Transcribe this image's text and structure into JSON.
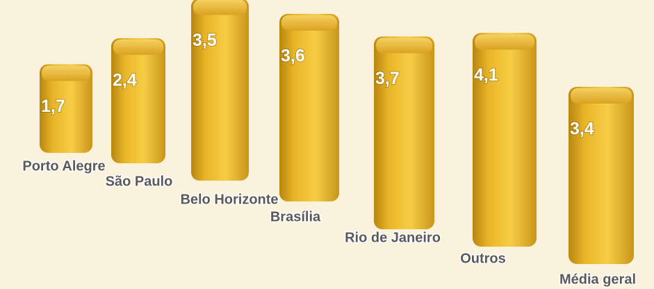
{
  "chart_data": {
    "type": "bar",
    "categories": [
      "Porto Alegre",
      "São Paulo",
      "Belo Horizonte",
      "Brasília",
      "Rio de Janeiro",
      "Outros",
      "Média geral"
    ],
    "values": [
      1.7,
      2.4,
      3.5,
      3.6,
      3.7,
      4.1,
      3.4
    ],
    "value_labels": [
      "1,7",
      "2,4",
      "3,5",
      "3,6",
      "3,7",
      "4,1",
      "3,4"
    ],
    "color": "#e8b52c"
  }
}
